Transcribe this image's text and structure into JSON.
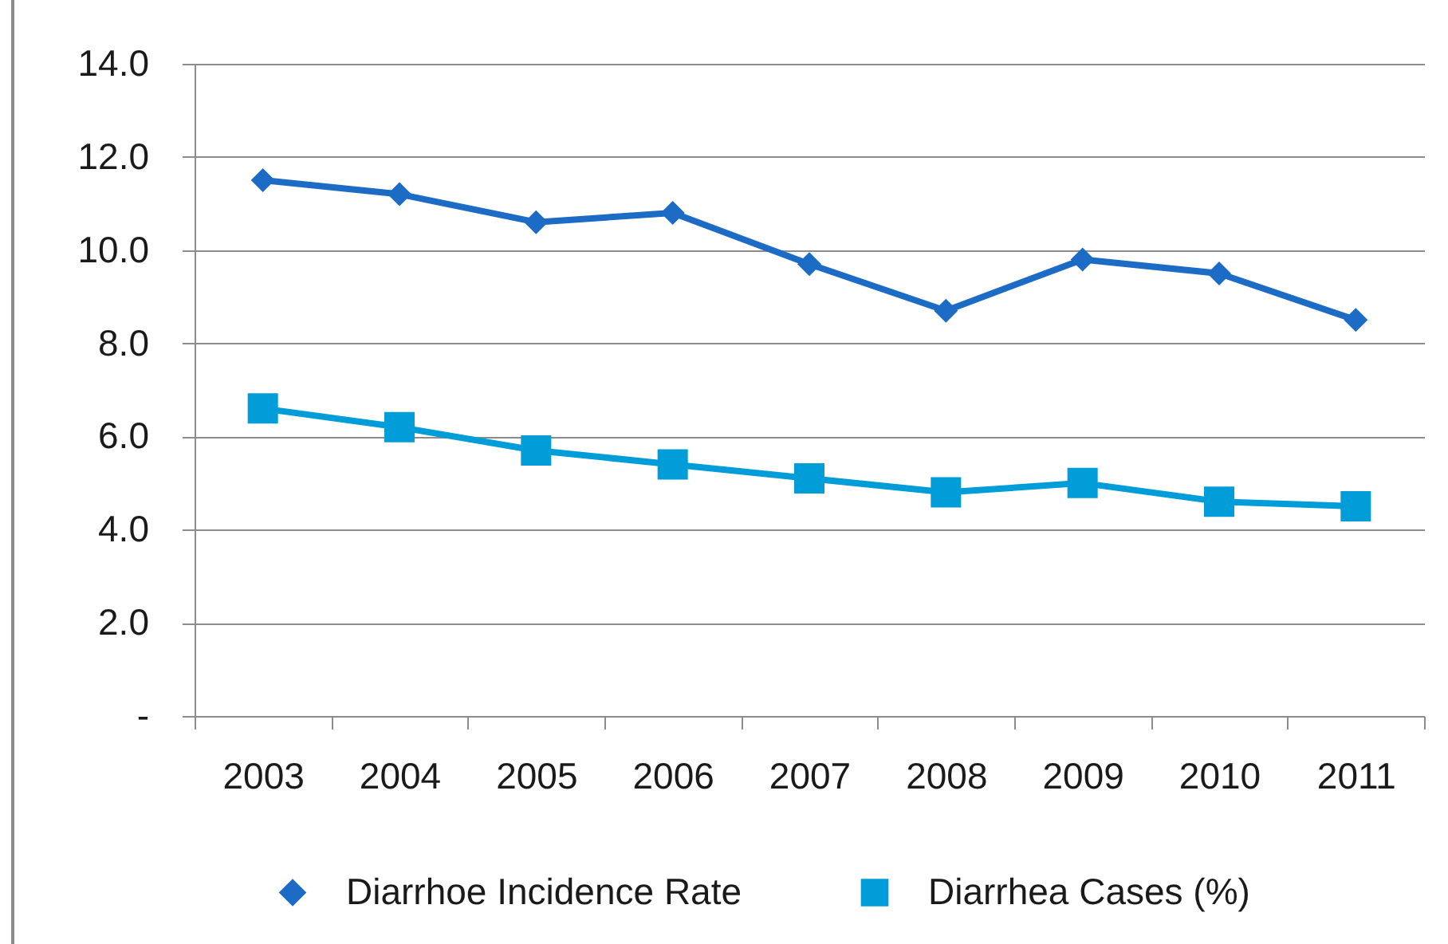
{
  "chart_data": {
    "type": "line",
    "categories": [
      "2003",
      "2004",
      "2005",
      "2006",
      "2007",
      "2008",
      "2009",
      "2010",
      "2011"
    ],
    "series": [
      {
        "name": "Diarrhoe Incidence Rate",
        "color": "#1c6bc4",
        "marker": "diamond",
        "values": [
          11.5,
          11.2,
          10.6,
          10.8,
          9.7,
          8.7,
          9.8,
          9.5,
          8.5
        ]
      },
      {
        "name": "Diarrhea Cases (%)",
        "color": "#009dd9",
        "marker": "square",
        "values": [
          6.6,
          6.2,
          5.7,
          5.4,
          5.1,
          4.8,
          5.0,
          4.6,
          4.5
        ]
      }
    ],
    "ylim": [
      0,
      14
    ],
    "yticks": [
      {
        "value": 0,
        "label": "-"
      },
      {
        "value": 2,
        "label": "2.0"
      },
      {
        "value": 4,
        "label": "4.0"
      },
      {
        "value": 6,
        "label": "6.0"
      },
      {
        "value": 8,
        "label": "8.0"
      },
      {
        "value": 10,
        "label": "10.0"
      },
      {
        "value": 12,
        "label": "12.0"
      },
      {
        "value": 14,
        "label": "14.0"
      }
    ],
    "grid": "y",
    "legend": "bottom"
  }
}
